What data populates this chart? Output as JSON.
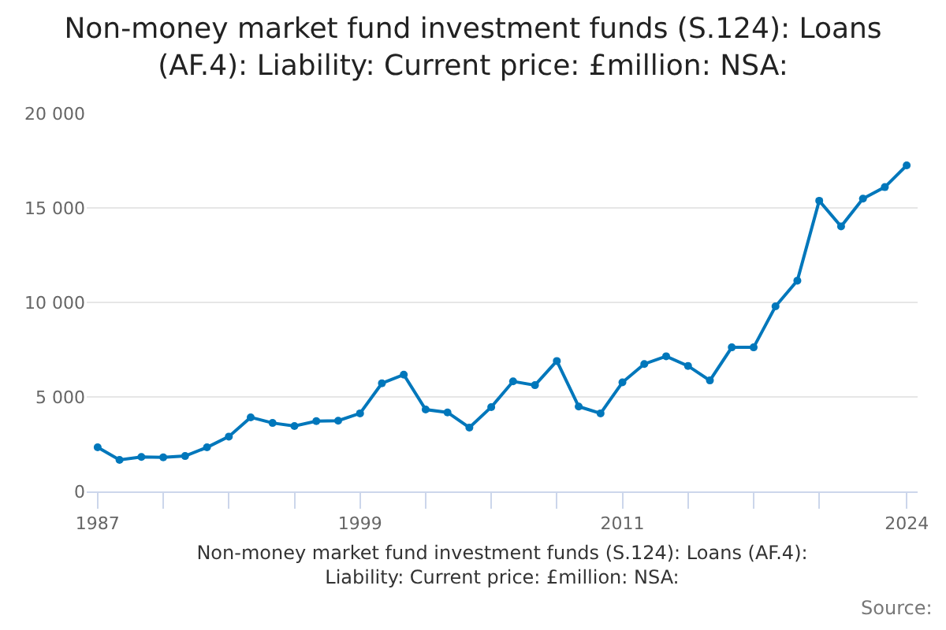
{
  "chart_data": {
    "type": "line",
    "title": "Non-money market fund investment funds (S.124): Loans (AF.4): Liability: Current price: £million: NSA:",
    "xlabel": "Non-money market fund investment funds (S.124): Loans (AF.4): Liability: Current price: £million: NSA:",
    "annotations": [
      "Source:"
    ],
    "x": [
      1987,
      1988,
      1989,
      1990,
      1991,
      1992,
      1993,
      1994,
      1995,
      1996,
      1997,
      1998,
      1999,
      2000,
      2001,
      2002,
      2003,
      2004,
      2005,
      2006,
      2007,
      2008,
      2009,
      2010,
      2011,
      2012,
      2013,
      2014,
      2015,
      2016,
      2017,
      2018,
      2019,
      2020,
      2021,
      2022,
      2023,
      2024
    ],
    "series": [
      {
        "color": "#0077bb",
        "values": [
          2330,
          1670,
          1820,
          1800,
          1870,
          2330,
          2900,
          3920,
          3620,
          3460,
          3720,
          3740,
          4130,
          5720,
          6180,
          4330,
          4180,
          3380,
          4460,
          5820,
          5620,
          6900,
          4490,
          4130,
          5770,
          6740,
          7150,
          6640,
          5870,
          7620,
          7620,
          9790,
          11150,
          15380,
          14020,
          15490,
          16100,
          17250
        ]
      }
    ],
    "xlim": [
      1986.5,
      2024.5
    ],
    "xticks": [
      1987,
      {
        "value": 1990,
        "label": null
      },
      {
        "value": 1993,
        "label": null
      },
      {
        "value": 1996,
        "label": null
      },
      1999,
      {
        "value": 2002,
        "label": null
      },
      {
        "value": 2005,
        "label": null
      },
      {
        "value": 2008,
        "label": null
      },
      2011,
      {
        "value": 2014,
        "label": null
      },
      {
        "value": 2017,
        "label": null
      },
      {
        "value": 2020,
        "label": null
      },
      2024
    ],
    "ylim": [
      0,
      20000
    ],
    "yticks": [
      0,
      {
        "value": 5000,
        "label": "5 000"
      },
      {
        "value": 10000,
        "label": "10 000"
      },
      {
        "value": 15000,
        "label": "15 000"
      },
      {
        "value": 20000,
        "label": "20 000"
      }
    ],
    "grid": "y",
    "marker": "circle"
  }
}
